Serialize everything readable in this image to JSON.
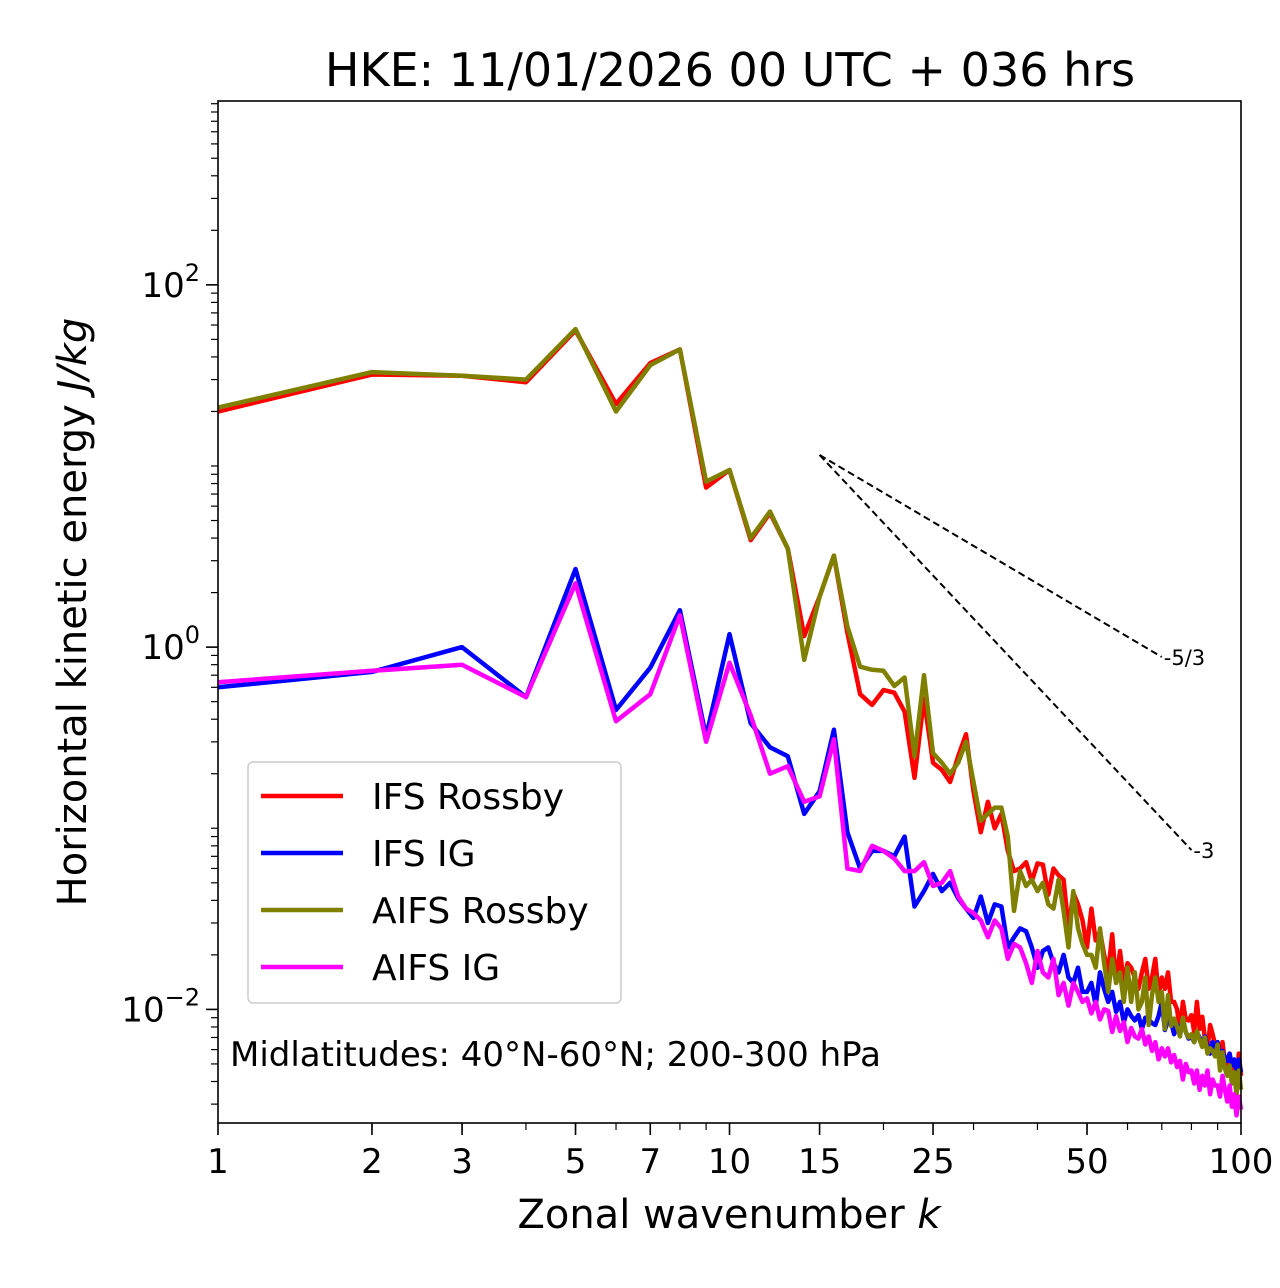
{
  "chart_data": {
    "type": "line",
    "title": "HKE: 11/01/2026 00 UTC + 036 hrs",
    "xlabel": "Zonal wavenumber k",
    "xlabel_text": "Zonal wavenumber",
    "xlabel_var": "k",
    "ylabel": "Horizontal kinetic energy J/kg",
    "ylabel_text": "Horizontal kinetic energy",
    "ylabel_unit": "J/kg",
    "xscale": "log",
    "yscale": "log",
    "xlim": [
      1,
      100
    ],
    "ylim": [
      0.00236,
      1035
    ],
    "x_ticks": [
      1,
      2,
      3,
      5,
      7,
      10,
      15,
      25,
      50,
      100
    ],
    "x_tick_labels": [
      "1",
      "2",
      "3",
      "5",
      "7",
      "10",
      "15",
      "25",
      "50",
      "100"
    ],
    "y_ticks": [
      0.01,
      1,
      100
    ],
    "y_tick_labels": [
      {
        "base": "10",
        "exp": "−2"
      },
      {
        "base": "10",
        "exp": "0"
      },
      {
        "base": "10",
        "exp": "2"
      }
    ],
    "annotation": "Midlatitudes: 40°N-60°N; 200-300 hPa",
    "reference_lines": [
      {
        "label": "-5/3",
        "slope": -1.6667,
        "x0": 15,
        "y0": 11.5,
        "x1": 70
      },
      {
        "label": "-3",
        "slope": -3,
        "x0": 15,
        "y0": 11.5,
        "x1": 80
      }
    ],
    "legend_position": "lower-left",
    "series": [
      {
        "name": "IFS Rossby",
        "color": "#ff0000",
        "x": [
          1,
          2,
          3,
          4,
          5,
          6,
          7,
          8,
          9,
          10,
          11,
          12,
          13,
          14,
          15,
          16,
          17,
          18,
          19,
          20,
          21,
          22,
          23,
          24,
          25,
          26,
          27,
          28,
          29,
          30,
          31,
          32,
          33,
          34,
          35,
          36,
          37,
          38,
          39,
          40,
          41,
          42,
          43,
          44,
          45,
          46,
          47,
          48,
          49,
          50,
          51,
          52,
          53,
          54,
          55,
          56,
          57,
          58,
          59,
          60,
          61,
          62,
          63,
          64,
          65,
          66,
          67,
          68,
          69,
          70,
          71,
          72,
          73,
          74,
          75,
          76,
          77,
          78,
          79,
          80,
          81,
          82,
          83,
          84,
          85,
          86,
          87,
          88,
          89,
          90,
          91,
          92,
          93,
          94,
          95,
          96,
          97,
          98,
          99,
          100
        ],
        "y": [
          20.0,
          32.0,
          31.5,
          29.0,
          56.0,
          22.0,
          37.0,
          44.0,
          7.6,
          9.5,
          3.9,
          5.5,
          3.5,
          1.15,
          1.9,
          3.2,
          1.2,
          0.55,
          0.48,
          0.58,
          0.56,
          0.44,
          0.19,
          0.52,
          0.23,
          0.21,
          0.18,
          0.25,
          0.33,
          0.16,
          0.095,
          0.14,
          0.1,
          0.12,
          0.075,
          0.058,
          0.06,
          0.065,
          0.051,
          0.064,
          0.063,
          0.043,
          0.06,
          0.055,
          0.052,
          0.028,
          0.044,
          0.038,
          0.031,
          0.022,
          0.036,
          0.024,
          0.027,
          0.02,
          0.016,
          0.026,
          0.014,
          0.021,
          0.014,
          0.018,
          0.017,
          0.015,
          0.013,
          0.016,
          0.019,
          0.013,
          0.015,
          0.019,
          0.012,
          0.015,
          0.013,
          0.016,
          0.011,
          0.011,
          0.01,
          0.0076,
          0.011,
          0.0088,
          0.0087,
          0.0093,
          0.0075,
          0.011,
          0.0078,
          0.0091,
          0.0069,
          0.006,
          0.0082,
          0.0073,
          0.0064,
          0.0063,
          0.0054,
          0.0066,
          0.0051,
          0.0046,
          0.0057,
          0.0044,
          0.0048,
          0.0038,
          0.0057,
          0.0043
        ]
      },
      {
        "name": "IFS IG",
        "color": "#0000ff",
        "x": [
          1,
          2,
          3,
          4,
          5,
          6,
          7,
          8,
          9,
          10,
          11,
          12,
          13,
          14,
          15,
          16,
          17,
          18,
          19,
          20,
          21,
          22,
          23,
          24,
          25,
          26,
          27,
          28,
          29,
          30,
          31,
          32,
          33,
          34,
          35,
          36,
          37,
          38,
          39,
          40,
          41,
          42,
          43,
          44,
          45,
          46,
          47,
          48,
          49,
          50,
          51,
          52,
          53,
          54,
          55,
          56,
          57,
          58,
          59,
          60,
          61,
          62,
          63,
          64,
          65,
          66,
          67,
          68,
          69,
          70,
          71,
          72,
          73,
          74,
          75,
          76,
          77,
          78,
          79,
          80,
          81,
          82,
          83,
          84,
          85,
          86,
          87,
          88,
          89,
          90,
          91,
          92,
          93,
          94,
          95,
          96,
          97,
          98,
          99,
          100
        ],
        "y": [
          0.6,
          0.73,
          1.0,
          0.53,
          2.7,
          0.45,
          0.77,
          1.6,
          0.32,
          1.18,
          0.38,
          0.28,
          0.25,
          0.12,
          0.16,
          0.35,
          0.095,
          0.06,
          0.075,
          0.075,
          0.07,
          0.09,
          0.037,
          0.045,
          0.056,
          0.045,
          0.05,
          0.041,
          0.036,
          0.032,
          0.042,
          0.03,
          0.038,
          0.037,
          0.022,
          0.025,
          0.028,
          0.027,
          0.022,
          0.017,
          0.021,
          0.022,
          0.018,
          0.016,
          0.02,
          0.015,
          0.014,
          0.017,
          0.0125,
          0.0125,
          0.014,
          0.0105,
          0.016,
          0.013,
          0.011,
          0.0125,
          0.0097,
          0.011,
          0.0085,
          0.01,
          0.0092,
          0.0087,
          0.0093,
          0.0078,
          0.009,
          0.0088,
          0.0084,
          0.0082,
          0.0092,
          0.011,
          0.0077,
          0.0087,
          0.0085,
          0.0073,
          0.0082,
          0.0079,
          0.0086,
          0.0075,
          0.0069,
          0.0071,
          0.0066,
          0.0075,
          0.007,
          0.0065,
          0.0071,
          0.0063,
          0.0057,
          0.0066,
          0.0061,
          0.0066,
          0.0055,
          0.0059,
          0.0054,
          0.0052,
          0.0057,
          0.0049,
          0.0053,
          0.0046,
          0.0053,
          0.0045
        ]
      },
      {
        "name": "AIFS Rossby",
        "color": "#808000",
        "x": [
          1,
          2,
          3,
          4,
          5,
          6,
          7,
          8,
          9,
          10,
          11,
          12,
          13,
          14,
          15,
          16,
          17,
          18,
          19,
          20,
          21,
          22,
          23,
          24,
          25,
          26,
          27,
          28,
          29,
          30,
          31,
          32,
          33,
          34,
          35,
          36,
          37,
          38,
          39,
          40,
          41,
          42,
          43,
          44,
          45,
          46,
          47,
          48,
          49,
          50,
          51,
          52,
          53,
          54,
          55,
          56,
          57,
          58,
          59,
          60,
          61,
          62,
          63,
          64,
          65,
          66,
          67,
          68,
          69,
          70,
          71,
          72,
          73,
          74,
          75,
          76,
          77,
          78,
          79,
          80,
          81,
          82,
          83,
          84,
          85,
          86,
          87,
          88,
          89,
          90,
          91,
          92,
          93,
          94,
          95,
          96,
          97,
          98,
          99,
          100
        ],
        "y": [
          21.0,
          33.0,
          31.5,
          30.0,
          57.0,
          20.0,
          36.0,
          44.0,
          8.2,
          9.5,
          4.0,
          5.6,
          3.5,
          0.85,
          1.9,
          3.2,
          1.3,
          0.78,
          0.75,
          0.74,
          0.61,
          0.68,
          0.25,
          0.7,
          0.26,
          0.23,
          0.2,
          0.23,
          0.3,
          0.18,
          0.11,
          0.12,
          0.13,
          0.13,
          0.09,
          0.035,
          0.058,
          0.048,
          0.052,
          0.045,
          0.05,
          0.038,
          0.036,
          0.052,
          0.035,
          0.022,
          0.045,
          0.028,
          0.023,
          0.02,
          0.02,
          0.017,
          0.028,
          0.018,
          0.0125,
          0.019,
          0.014,
          0.016,
          0.011,
          0.017,
          0.011,
          0.016,
          0.01,
          0.011,
          0.015,
          0.0082,
          0.012,
          0.015,
          0.011,
          0.0125,
          0.0078,
          0.012,
          0.0081,
          0.0089,
          0.008,
          0.0071,
          0.009,
          0.0075,
          0.007,
          0.0073,
          0.0066,
          0.0076,
          0.0068,
          0.0062,
          0.007,
          0.0057,
          0.0061,
          0.0059,
          0.0055,
          0.0064,
          0.0046,
          0.0058,
          0.0047,
          0.0043,
          0.0049,
          0.0039,
          0.0045,
          0.0034,
          0.0046,
          0.0036
        ]
      },
      {
        "name": "AIFS IG",
        "color": "#ff00ff",
        "x": [
          1,
          2,
          3,
          4,
          5,
          6,
          7,
          8,
          9,
          10,
          11,
          12,
          13,
          14,
          15,
          16,
          17,
          18,
          19,
          20,
          21,
          22,
          23,
          24,
          25,
          26,
          27,
          28,
          29,
          30,
          31,
          32,
          33,
          34,
          35,
          36,
          37,
          38,
          39,
          40,
          41,
          42,
          43,
          44,
          45,
          46,
          47,
          48,
          49,
          50,
          51,
          52,
          53,
          54,
          55,
          56,
          57,
          58,
          59,
          60,
          61,
          62,
          63,
          64,
          65,
          66,
          67,
          68,
          69,
          70,
          71,
          72,
          73,
          74,
          75,
          76,
          77,
          78,
          79,
          80,
          81,
          82,
          83,
          84,
          85,
          86,
          87,
          88,
          89,
          90,
          91,
          92,
          93,
          94,
          95,
          96,
          97,
          98,
          99,
          100
        ],
        "y": [
          0.64,
          0.74,
          0.8,
          0.53,
          2.25,
          0.39,
          0.55,
          1.5,
          0.3,
          0.82,
          0.42,
          0.2,
          0.22,
          0.14,
          0.15,
          0.31,
          0.06,
          0.058,
          0.08,
          0.075,
          0.068,
          0.058,
          0.058,
          0.065,
          0.048,
          0.05,
          0.058,
          0.042,
          0.036,
          0.034,
          0.031,
          0.025,
          0.031,
          0.028,
          0.019,
          0.023,
          0.022,
          0.018,
          0.014,
          0.021,
          0.016,
          0.015,
          0.019,
          0.012,
          0.014,
          0.0105,
          0.014,
          0.0125,
          0.011,
          0.0115,
          0.0095,
          0.011,
          0.0088,
          0.01,
          0.0098,
          0.0075,
          0.0092,
          0.0076,
          0.0085,
          0.0066,
          0.0079,
          0.0071,
          0.0069,
          0.0078,
          0.0064,
          0.0071,
          0.0059,
          0.0066,
          0.0053,
          0.0061,
          0.0055,
          0.0061,
          0.0051,
          0.0056,
          0.0048,
          0.0052,
          0.0041,
          0.005,
          0.0045,
          0.0046,
          0.0039,
          0.0046,
          0.0036,
          0.0043,
          0.0038,
          0.0046,
          0.0034,
          0.0041,
          0.0038,
          0.0038,
          0.0033,
          0.0043,
          0.0036,
          0.0031,
          0.0038,
          0.0029,
          0.0034,
          0.0026,
          0.0033,
          0.0028
        ]
      }
    ]
  }
}
